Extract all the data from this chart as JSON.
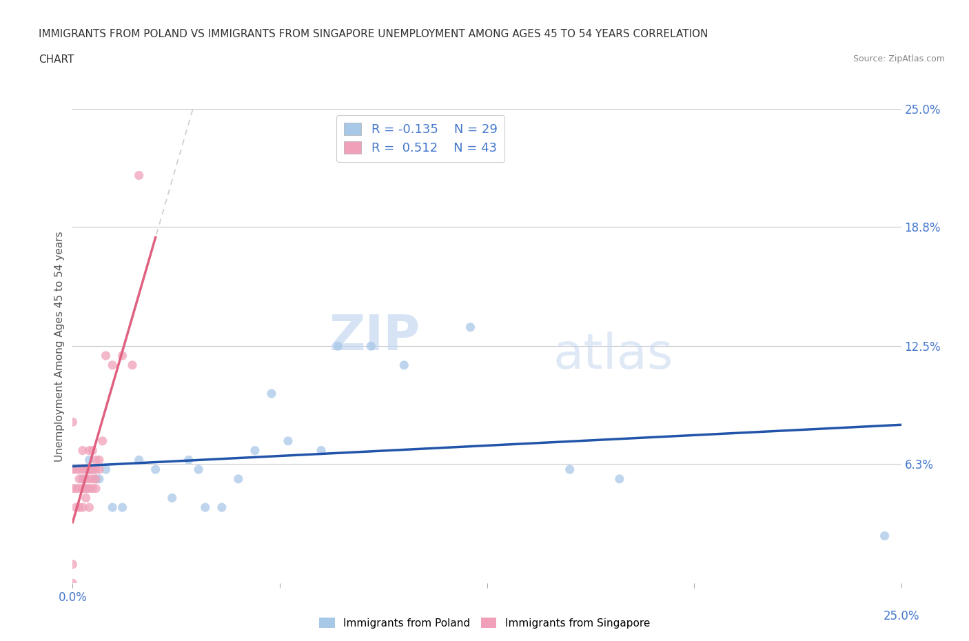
{
  "title_line1": "IMMIGRANTS FROM POLAND VS IMMIGRANTS FROM SINGAPORE UNEMPLOYMENT AMONG AGES 45 TO 54 YEARS CORRELATION",
  "title_line2": "CHART",
  "source": "Source: ZipAtlas.com",
  "ylabel": "Unemployment Among Ages 45 to 54 years",
  "xlim": [
    0.0,
    0.25
  ],
  "ylim": [
    0.0,
    0.25
  ],
  "poland_color": "#a8c8e8",
  "singapore_color": "#f0a0b8",
  "poland_line_color": "#2255aa",
  "singapore_line_color": "#e06080",
  "poland_R": -0.135,
  "poland_N": 29,
  "singapore_R": 0.512,
  "singapore_N": 43,
  "legend_label_poland": "Immigrants from Poland",
  "legend_label_singapore": "Immigrants from Singapore",
  "watermark_zip": "ZIP",
  "watermark_atlas": "atlas",
  "poland_scatter_x": [
    0.003,
    0.004,
    0.005,
    0.005,
    0.006,
    0.007,
    0.008,
    0.01,
    0.012,
    0.015,
    0.02,
    0.025,
    0.03,
    0.035,
    0.038,
    0.04,
    0.045,
    0.05,
    0.055,
    0.06,
    0.065,
    0.075,
    0.08,
    0.09,
    0.1,
    0.12,
    0.15,
    0.165,
    0.245
  ],
  "poland_scatter_y": [
    0.055,
    0.05,
    0.065,
    0.06,
    0.06,
    0.055,
    0.055,
    0.06,
    0.04,
    0.04,
    0.065,
    0.06,
    0.045,
    0.065,
    0.06,
    0.04,
    0.04,
    0.055,
    0.07,
    0.1,
    0.075,
    0.07,
    0.125,
    0.125,
    0.115,
    0.135,
    0.06,
    0.055,
    0.025
  ],
  "singapore_scatter_x": [
    0.0,
    0.0,
    0.0,
    0.0,
    0.0,
    0.001,
    0.001,
    0.001,
    0.002,
    0.002,
    0.002,
    0.002,
    0.003,
    0.003,
    0.003,
    0.003,
    0.003,
    0.004,
    0.004,
    0.004,
    0.004,
    0.005,
    0.005,
    0.005,
    0.005,
    0.005,
    0.005,
    0.006,
    0.006,
    0.006,
    0.006,
    0.007,
    0.007,
    0.007,
    0.007,
    0.008,
    0.008,
    0.009,
    0.01,
    0.012,
    0.015,
    0.018,
    0.02
  ],
  "singapore_scatter_y": [
    0.0,
    0.01,
    0.05,
    0.06,
    0.085,
    0.04,
    0.05,
    0.06,
    0.04,
    0.05,
    0.055,
    0.06,
    0.04,
    0.05,
    0.055,
    0.06,
    0.07,
    0.045,
    0.05,
    0.055,
    0.06,
    0.04,
    0.05,
    0.055,
    0.06,
    0.06,
    0.07,
    0.05,
    0.055,
    0.06,
    0.07,
    0.05,
    0.055,
    0.06,
    0.065,
    0.06,
    0.065,
    0.075,
    0.12,
    0.115,
    0.12,
    0.115,
    0.215
  ],
  "background_color": "#ffffff",
  "grid_color": "#c8c8d0"
}
